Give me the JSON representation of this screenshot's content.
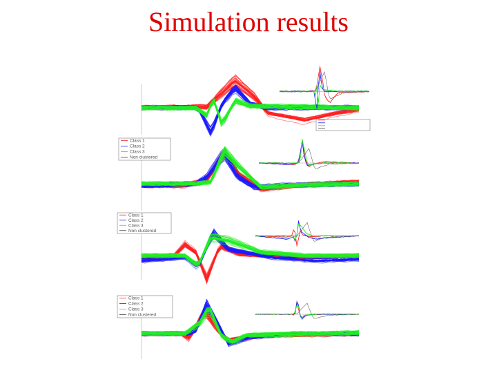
{
  "slide": {
    "title": "Simulation results"
  },
  "colors": {
    "title": "#e00000",
    "class_1": "#ff2020",
    "class_2": "#1a1aff",
    "class_3": "#22ee22",
    "non_clustered": "#444444"
  },
  "chart_data": [
    {
      "type": "line",
      "panel": 1,
      "series": [
        {
          "name": "Class 1",
          "color": "#ff2020",
          "shape": [
            [
              0,
              0
            ],
            [
              0.3,
              0.02
            ],
            [
              0.43,
              0.75
            ],
            [
              0.52,
              0.3
            ],
            [
              0.58,
              -0.15
            ],
            [
              0.75,
              -0.35
            ],
            [
              0.9,
              -0.15
            ],
            [
              1,
              -0.05
            ]
          ]
        },
        {
          "name": "Class 2",
          "color": "#1a1aff",
          "shape": [
            [
              0,
              0
            ],
            [
              0.26,
              0
            ],
            [
              0.32,
              -0.7
            ],
            [
              0.37,
              0.1
            ],
            [
              0.43,
              0.55
            ],
            [
              0.5,
              0.1
            ],
            [
              0.58,
              0
            ],
            [
              1,
              0
            ]
          ]
        },
        {
          "name": "Class 3",
          "color": "#22ee22",
          "shape": [
            [
              0,
              0
            ],
            [
              0.25,
              0
            ],
            [
              0.3,
              -0.2
            ],
            [
              0.33,
              0.25
            ],
            [
              0.37,
              -0.45
            ],
            [
              0.43,
              0.2
            ],
            [
              0.5,
              0.05
            ],
            [
              1,
              0
            ]
          ]
        }
      ],
      "legend": [
        "",
        "",
        "",
        ""
      ]
    },
    {
      "type": "line",
      "panel": 2,
      "series": [
        {
          "name": "Class 1",
          "color": "#ff2020",
          "shape": [
            [
              0,
              -0.05
            ],
            [
              0.2,
              -0.05
            ],
            [
              0.3,
              0.1
            ],
            [
              0.38,
              0.9
            ],
            [
              0.45,
              0.25
            ],
            [
              0.55,
              -0.15
            ],
            [
              0.7,
              -0.05
            ],
            [
              1,
              0.05
            ]
          ]
        },
        {
          "name": "Class 2",
          "color": "#1a1aff",
          "shape": [
            [
              0,
              -0.05
            ],
            [
              0.25,
              0
            ],
            [
              0.3,
              0.2
            ],
            [
              0.38,
              0.85
            ],
            [
              0.44,
              0.2
            ],
            [
              0.52,
              -0.1
            ],
            [
              0.65,
              -0.05
            ],
            [
              1,
              0
            ]
          ]
        },
        {
          "name": "Class 3",
          "color": "#22ee22",
          "shape": [
            [
              0,
              0
            ],
            [
              0.25,
              0
            ],
            [
              0.32,
              0.05
            ],
            [
              0.38,
              0.9
            ],
            [
              0.46,
              0.4
            ],
            [
              0.55,
              -0.1
            ],
            [
              0.7,
              -0.05
            ],
            [
              1,
              0
            ]
          ]
        }
      ],
      "legend": [
        "Class 1",
        "Class 2",
        "Class 3",
        "Non clustered"
      ]
    },
    {
      "type": "line",
      "panel": 3,
      "series": [
        {
          "name": "Class 1",
          "color": "#ff2020",
          "shape": [
            [
              0,
              -0.05
            ],
            [
              0.15,
              0
            ],
            [
              0.2,
              0.35
            ],
            [
              0.25,
              0.1
            ],
            [
              0.3,
              -0.7
            ],
            [
              0.36,
              0.3
            ],
            [
              0.45,
              0.05
            ],
            [
              0.7,
              -0.05
            ],
            [
              1,
              0
            ]
          ]
        },
        {
          "name": "Class 2",
          "color": "#1a1aff",
          "shape": [
            [
              0,
              -0.15
            ],
            [
              0.2,
              -0.05
            ],
            [
              0.26,
              -0.35
            ],
            [
              0.33,
              0.7
            ],
            [
              0.4,
              0.2
            ],
            [
              0.6,
              -0.05
            ],
            [
              0.8,
              -0.15
            ],
            [
              1,
              -0.1
            ]
          ]
        },
        {
          "name": "Class 3",
          "color": "#22ee22",
          "shape": [
            [
              0,
              0
            ],
            [
              0.2,
              0
            ],
            [
              0.26,
              -0.3
            ],
            [
              0.32,
              0.55
            ],
            [
              0.4,
              0.45
            ],
            [
              0.55,
              0.1
            ],
            [
              0.75,
              0
            ],
            [
              1,
              0
            ]
          ]
        }
      ],
      "legend": [
        "Class 1",
        "Class 2",
        "Class 3",
        "Non clustered"
      ]
    },
    {
      "type": "line",
      "panel": 4,
      "series": [
        {
          "name": "Class 1",
          "color": "#ff2020",
          "shape": [
            [
              0,
              0
            ],
            [
              0.18,
              0
            ],
            [
              0.22,
              -0.15
            ],
            [
              0.29,
              0.65
            ],
            [
              0.35,
              0.1
            ],
            [
              0.4,
              -0.2
            ],
            [
              0.55,
              -0.05
            ],
            [
              1,
              0
            ]
          ]
        },
        {
          "name": "Class 2",
          "color": "#1a1aff",
          "shape": [
            [
              0,
              0
            ],
            [
              0.22,
              0
            ],
            [
              0.25,
              0.1
            ],
            [
              0.3,
              0.85
            ],
            [
              0.36,
              0.2
            ],
            [
              0.4,
              -0.3
            ],
            [
              0.5,
              -0.1
            ],
            [
              0.7,
              0
            ],
            [
              1,
              0
            ]
          ]
        },
        {
          "name": "Class 3",
          "color": "#22ee22",
          "shape": [
            [
              0,
              0
            ],
            [
              0.2,
              0
            ],
            [
              0.27,
              0.3
            ],
            [
              0.31,
              0.75
            ],
            [
              0.37,
              -0.1
            ],
            [
              0.42,
              -0.25
            ],
            [
              0.48,
              -0.05
            ],
            [
              1,
              0.02
            ]
          ]
        }
      ],
      "legend": [
        "Class 1",
        "Class 2",
        "Class 3",
        "Non clustered"
      ]
    }
  ]
}
